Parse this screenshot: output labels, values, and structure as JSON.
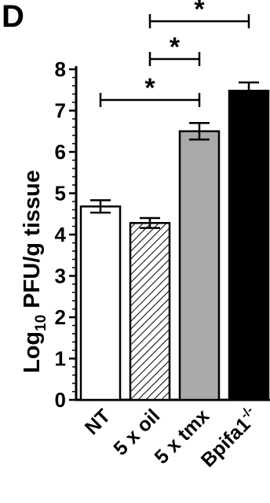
{
  "panel_label": "D",
  "chart_data": {
    "type": "bar",
    "ylabel": "Log",
    "ylabel_sub": "10",
    "ylabel_rest": " PFU/g tissue",
    "ylim": [
      0,
      8
    ],
    "yticks": [
      0,
      1,
      2,
      3,
      4,
      5,
      6,
      7,
      8
    ],
    "grid": false,
    "categories": [
      {
        "label": "NT",
        "value": 4.68,
        "error": 0.15,
        "fill": "solid",
        "color": "#ffffff"
      },
      {
        "label": "5 x oil",
        "value": 4.28,
        "error": 0.12,
        "fill": "hatched",
        "color": "#ffffff"
      },
      {
        "label": "5 x tmx",
        "value": 6.5,
        "error": 0.2,
        "fill": "solid",
        "color": "#a9a9a9"
      },
      {
        "label": "Bpifa1",
        "label_sup": "-/-",
        "value": 7.48,
        "error": 0.2,
        "fill": "solid",
        "color": "#000000"
      }
    ],
    "significance": [
      {
        "from": 1,
        "to": 3,
        "label": "*"
      },
      {
        "from": 1,
        "to": 2,
        "label": "*"
      },
      {
        "from": 0,
        "to": 2,
        "label": "*"
      }
    ]
  }
}
